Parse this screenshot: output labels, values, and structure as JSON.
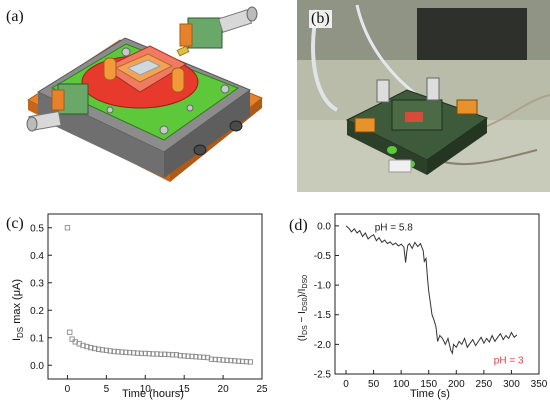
{
  "panels": {
    "a": {
      "label": "(a)"
    },
    "b": {
      "label": "(b)"
    },
    "c": {
      "label": "(c)"
    },
    "d": {
      "label": "(d)"
    }
  },
  "chart_data": [
    {
      "type": "scatter",
      "panel": "(c)",
      "xlabel": "Time (hours)",
      "ylabel": "IDS max (μA)",
      "ylabel_main": "I",
      "ylabel_sub": "DS",
      "ylabel_rest": " max (μA)",
      "xlim": [
        -2.5,
        25
      ],
      "ylim": [
        -0.05,
        0.55
      ],
      "xticks": [
        0,
        5,
        10,
        15,
        20,
        25
      ],
      "xtick_labels": [
        "0",
        "5",
        "10",
        "15",
        "20",
        "25"
      ],
      "yticks": [
        0.0,
        0.1,
        0.2,
        0.3,
        0.4,
        0.5
      ],
      "ytick_labels": [
        "0.0",
        "0.1",
        "0.2",
        "0.3",
        "0.4",
        "0.5"
      ],
      "marker": "open-square",
      "color": "#8a8a8a",
      "x": [
        0.0,
        0.3,
        0.6,
        1.0,
        1.5,
        2.0,
        2.5,
        3.0,
        3.5,
        4.0,
        4.5,
        5.0,
        5.5,
        6.0,
        6.5,
        7.0,
        7.5,
        8.0,
        8.5,
        9.0,
        9.5,
        10.0,
        10.5,
        11.0,
        11.5,
        12.0,
        12.5,
        13.0,
        13.5,
        14.0,
        14.5,
        15.0,
        15.5,
        16.0,
        16.5,
        17.0,
        17.5,
        18.0,
        18.5,
        19.0,
        19.5,
        20.0,
        20.5,
        21.0,
        21.5,
        22.0,
        22.5,
        23.0,
        23.5
      ],
      "y": [
        0.5,
        0.12,
        0.095,
        0.085,
        0.078,
        0.072,
        0.068,
        0.064,
        0.061,
        0.058,
        0.056,
        0.054,
        0.052,
        0.05,
        0.049,
        0.048,
        0.047,
        0.046,
        0.045,
        0.044,
        0.043,
        0.043,
        0.042,
        0.041,
        0.041,
        0.04,
        0.04,
        0.039,
        0.038,
        0.038,
        0.035,
        0.034,
        0.033,
        0.032,
        0.031,
        0.03,
        0.029,
        0.028,
        0.022,
        0.021,
        0.02,
        0.019,
        0.018,
        0.017,
        0.016,
        0.015,
        0.014,
        0.013,
        0.012
      ]
    },
    {
      "type": "line",
      "panel": "(d)",
      "xlabel": "Time (s)",
      "ylabel": "(IDS − IDS0)/IDS0",
      "xlim": [
        -20,
        350
      ],
      "ylim": [
        -2.5,
        0.2
      ],
      "xticks": [
        0,
        50,
        100,
        150,
        200,
        250,
        300,
        350
      ],
      "xtick_labels": [
        "0",
        "50",
        "100",
        "150",
        "200",
        "250",
        "300",
        "350"
      ],
      "yticks": [
        0.0,
        -0.5,
        -1.0,
        -1.5,
        -2.0,
        -2.5
      ],
      "ytick_labels": [
        "0.0",
        "-0.5",
        "-1.0",
        "-1.5",
        "-2.0",
        "-2.5"
      ],
      "color": "#333333",
      "annotations": [
        {
          "text": "pH = 5.8",
          "x": 52,
          "y": -0.08,
          "color": "#222222"
        },
        {
          "text": "pH = 3",
          "x": 268,
          "y": -2.32,
          "color": "#e8384b"
        }
      ],
      "x": [
        0,
        5,
        10,
        15,
        20,
        25,
        30,
        35,
        40,
        45,
        50,
        55,
        60,
        65,
        70,
        75,
        80,
        85,
        90,
        95,
        100,
        105,
        108,
        110,
        112,
        115,
        120,
        125,
        130,
        135,
        140,
        142,
        145,
        148,
        150,
        153,
        156,
        160,
        163,
        166,
        170,
        175,
        180,
        185,
        190,
        193,
        195,
        200,
        205,
        210,
        215,
        220,
        225,
        230,
        235,
        240,
        245,
        250,
        255,
        260,
        265,
        270,
        275,
        280,
        285,
        290,
        295,
        300,
        305,
        310
      ],
      "y": [
        0.0,
        -0.04,
        -0.1,
        -0.05,
        -0.12,
        -0.08,
        -0.18,
        -0.12,
        -0.22,
        -0.18,
        -0.15,
        -0.25,
        -0.2,
        -0.28,
        -0.24,
        -0.3,
        -0.27,
        -0.32,
        -0.29,
        -0.34,
        -0.31,
        -0.36,
        -0.62,
        -0.45,
        -0.33,
        -0.3,
        -0.38,
        -0.28,
        -0.35,
        -0.3,
        -0.42,
        -0.6,
        -0.55,
        -0.9,
        -1.1,
        -1.3,
        -1.5,
        -1.6,
        -1.7,
        -1.95,
        -1.85,
        -1.9,
        -2.0,
        -1.9,
        -2.1,
        -2.15,
        -2.0,
        -2.05,
        -1.95,
        -2.0,
        -1.9,
        -2.05,
        -1.98,
        -1.92,
        -2.02,
        -1.95,
        -1.88,
        -1.98,
        -1.9,
        -1.96,
        -1.85,
        -1.95,
        -1.88,
        -1.82,
        -1.92,
        -1.85,
        -1.9,
        -1.8,
        -1.88,
        -1.84
      ]
    }
  ]
}
